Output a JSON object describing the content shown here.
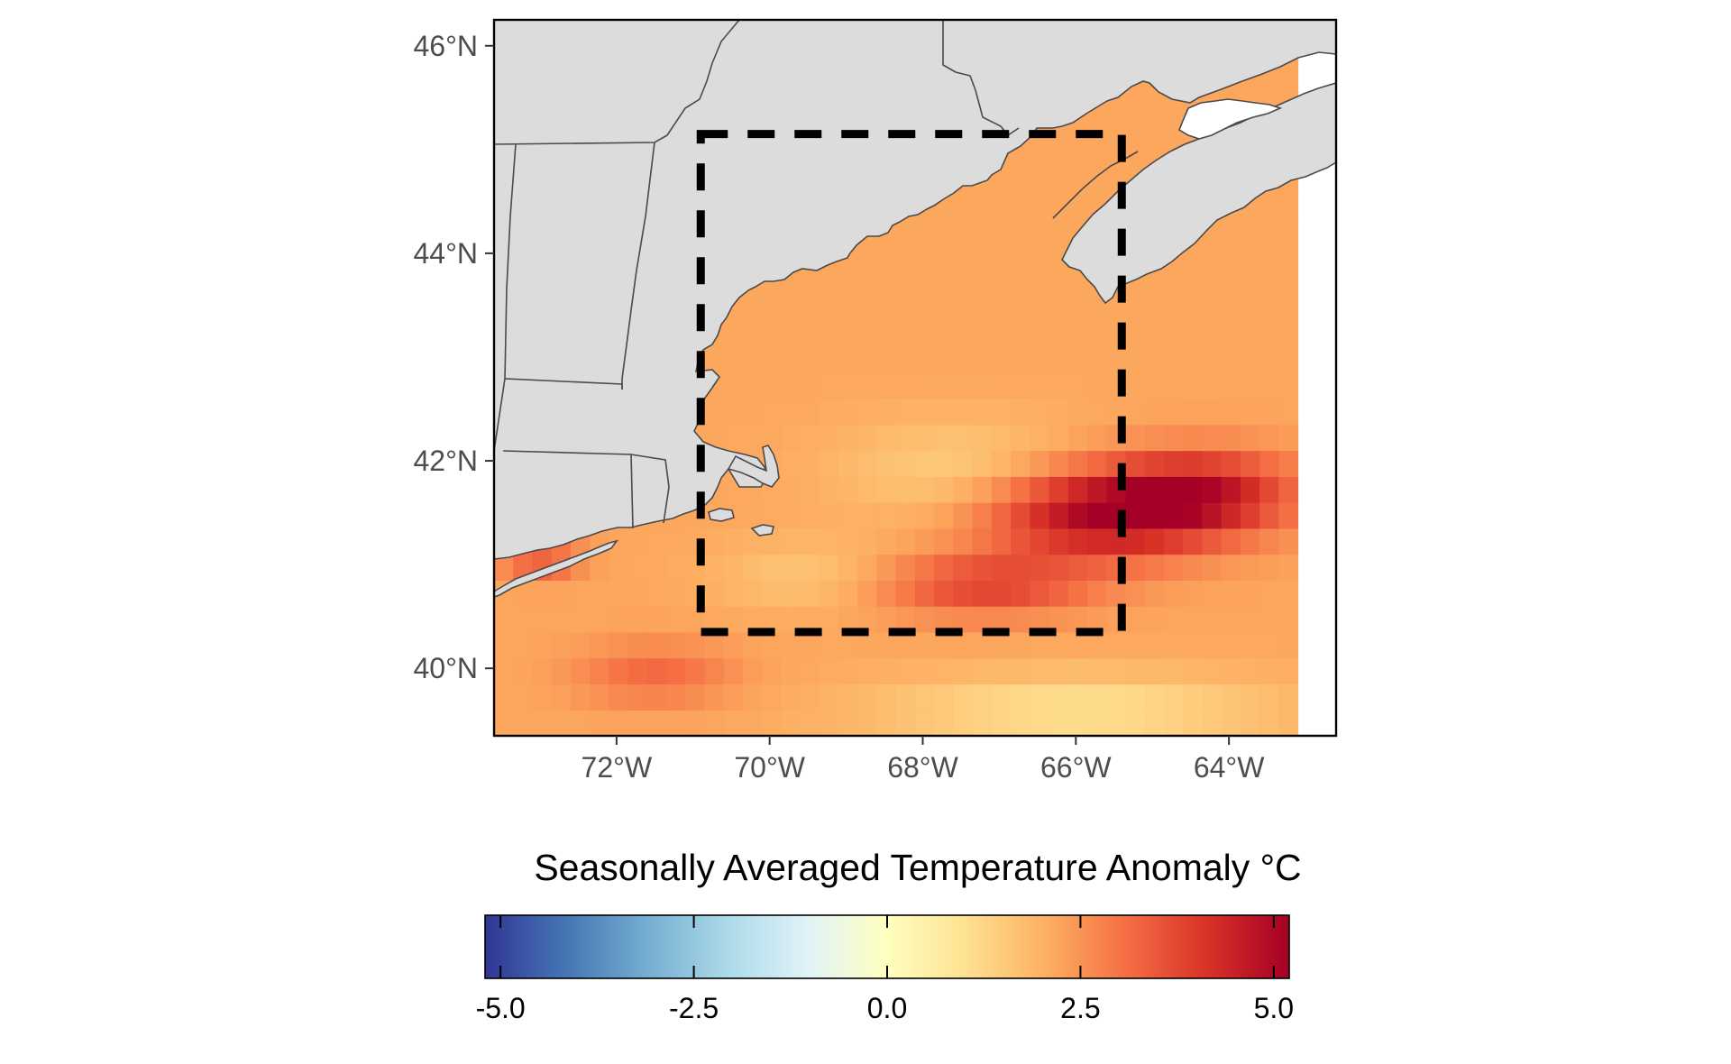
{
  "map": {
    "lon_range": [
      -73.6,
      -62.6
    ],
    "lat_range": [
      39.35,
      46.25
    ],
    "lon_ticks": [
      {
        "value": -72,
        "label": "72°W"
      },
      {
        "value": -70,
        "label": "70°W"
      },
      {
        "value": -68,
        "label": "68°W"
      },
      {
        "value": -66,
        "label": "66°W"
      },
      {
        "value": -64,
        "label": "64°W"
      }
    ],
    "lat_ticks": [
      {
        "value": 40,
        "label": "40°N"
      },
      {
        "value": 42,
        "label": "42°N"
      },
      {
        "value": 44,
        "label": "44°N"
      },
      {
        "value": 46,
        "label": "46°N"
      }
    ],
    "study_box": {
      "lon_min": -70.9,
      "lon_max": -65.4,
      "lat_min": 40.35,
      "lat_max": 45.15
    },
    "colors": {
      "land": "#dcdcdc",
      "coast": "#4a4a4a",
      "box": "#000000",
      "frame": "#000000"
    }
  },
  "legend": {
    "title": "Seasonally Averaged Temperature Anomaly °C",
    "min": -5.2,
    "max": 5.2,
    "ticks": [
      {
        "value": -5.0,
        "label": "-5.0"
      },
      {
        "value": -2.5,
        "label": "-2.5"
      },
      {
        "value": 0.0,
        "label": "0.0"
      },
      {
        "value": 2.5,
        "label": "2.5"
      },
      {
        "value": 5.0,
        "label": "5.0"
      }
    ],
    "palette": [
      "#313695",
      "#4575b4",
      "#74add1",
      "#abd9e9",
      "#e0f3f8",
      "#ffffbf",
      "#fee090",
      "#fdae61",
      "#f46d43",
      "#d73027",
      "#a50026"
    ]
  },
  "chart_data": {
    "type": "heatmap",
    "title": "",
    "xlabel": "",
    "ylabel": "",
    "legend_title": "Seasonally Averaged Temperature Anomaly °C",
    "value_range": [
      -5.0,
      5.0
    ],
    "xlim": [
      -73.6,
      -62.6
    ],
    "ylim": [
      39.35,
      46.25
    ],
    "grid": false,
    "legend_placement": "bottom",
    "anomaly_field": {
      "background": 2.2,
      "hotspots": [
        {
          "lon": -65.7,
          "lat": 41.5,
          "value": 5.0,
          "spread_lon": 1.5,
          "spread_lat": 0.45
        },
        {
          "lon": -64.3,
          "lat": 41.7,
          "value": 4.3,
          "spread_lon": 1.2,
          "spread_lat": 0.4
        },
        {
          "lon": -67.2,
          "lat": 40.8,
          "value": 3.8,
          "spread_lon": 1.4,
          "spread_lat": 0.3
        },
        {
          "lon": -71.5,
          "lat": 39.95,
          "value": 3.2,
          "spread_lon": 1.0,
          "spread_lat": 0.3
        },
        {
          "lon": -73.0,
          "lat": 41.1,
          "value": 3.8,
          "spread_lon": 0.5,
          "spread_lat": 0.2
        }
      ],
      "coolspots": [
        {
          "lon": -67.5,
          "lat": 41.9,
          "value": 1.4,
          "spread_lon": 1.6,
          "spread_lat": 0.5
        },
        {
          "lon": -66.0,
          "lat": 39.6,
          "value": 1.0,
          "spread_lon": 2.6,
          "spread_lat": 0.35
        },
        {
          "lon": -69.5,
          "lat": 40.9,
          "value": 1.6,
          "spread_lon": 1.2,
          "spread_lat": 0.35
        }
      ]
    }
  }
}
